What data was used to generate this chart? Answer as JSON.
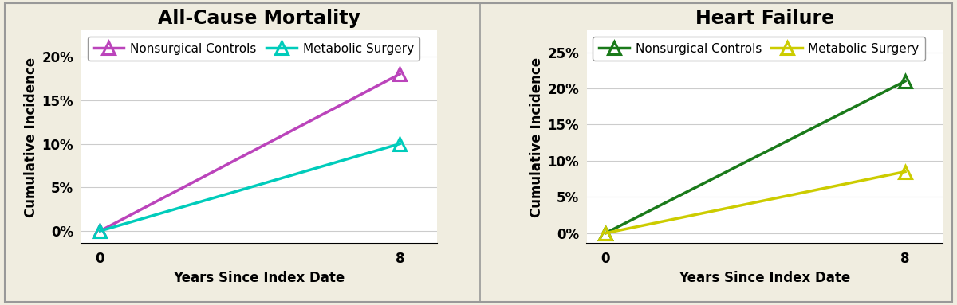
{
  "outer_background": "#f0ede0",
  "panel_background": "#ffffff",
  "chart1": {
    "title": "All-Cause Mortality",
    "ylabel": "Cumulative Incidence",
    "xlabel": "Years Since Index Date",
    "yticks": [
      0,
      5,
      10,
      15,
      20
    ],
    "ytick_labels": [
      "0%",
      "5%",
      "10%",
      "15%",
      "20%"
    ],
    "ylim": [
      -1.5,
      23
    ],
    "xticks": [
      0,
      8
    ],
    "xlim": [
      -0.5,
      9.0
    ],
    "series": [
      {
        "label": "Nonsurgical Controls",
        "x": [
          0,
          8
        ],
        "y": [
          0,
          18
        ],
        "color": "#bb44bb",
        "marker": "^",
        "linewidth": 2.5,
        "markersize": 11
      },
      {
        "label": "Metabolic Surgery",
        "x": [
          0,
          8
        ],
        "y": [
          0,
          10
        ],
        "color": "#00ccbb",
        "marker": "^",
        "linewidth": 2.5,
        "markersize": 11
      }
    ]
  },
  "chart2": {
    "title": "Heart Failure",
    "ylabel": "Cumulative Incidence",
    "xlabel": "Years Since Index Date",
    "yticks": [
      0,
      5,
      10,
      15,
      20,
      25
    ],
    "ytick_labels": [
      "0%",
      "5%",
      "10%",
      "15%",
      "20%",
      "25%"
    ],
    "ylim": [
      -1.5,
      28
    ],
    "xticks": [
      0,
      8
    ],
    "xlim": [
      -0.5,
      9.0
    ],
    "series": [
      {
        "label": "Nonsurgical Controls",
        "x": [
          0,
          8
        ],
        "y": [
          0,
          21
        ],
        "color": "#1a7a1a",
        "marker": "^",
        "linewidth": 2.5,
        "markersize": 11
      },
      {
        "label": "Metabolic Surgery",
        "x": [
          0,
          8
        ],
        "y": [
          0,
          8.5
        ],
        "color": "#cccc00",
        "marker": "^",
        "linewidth": 2.5,
        "markersize": 11
      }
    ]
  },
  "title_fontsize": 17,
  "label_fontsize": 12,
  "tick_fontsize": 12,
  "legend_fontsize": 11,
  "grid_color": "#cccccc",
  "border_color": "#999999"
}
